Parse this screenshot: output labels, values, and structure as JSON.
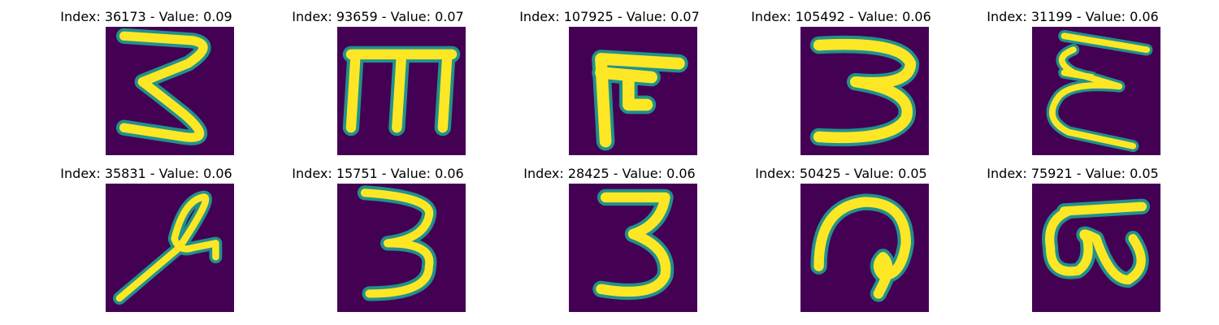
{
  "figure": {
    "colors": {
      "background": "#440154",
      "ink_mid": "#21918c",
      "ink_light": "#5ec962",
      "ink_peak": "#fde725"
    },
    "panels": [
      {
        "title": "Index: 36173 - Value: 0.09",
        "image": "digit-3-on-side"
      },
      {
        "title": "Index: 93659 - Value: 0.07",
        "image": "digit-3-rotated"
      },
      {
        "title": "Index: 107925 - Value: 0.07",
        "image": "digit-3-rotated"
      },
      {
        "title": "Index: 105492 - Value: 0.06",
        "image": "digit-3"
      },
      {
        "title": "Index: 31199 - Value: 0.06",
        "image": "digit-3-on-side"
      },
      {
        "title": "Index: 35831 - Value: 0.06",
        "image": "digit-scribble"
      },
      {
        "title": "Index: 15751 - Value: 0.06",
        "image": "digit-3"
      },
      {
        "title": "Index: 28425 - Value: 0.06",
        "image": "digit-3"
      },
      {
        "title": "Index: 50425 - Value: 0.05",
        "image": "digit-3-rotated"
      },
      {
        "title": "Index: 75921 - Value: 0.05",
        "image": "digit-3-rotated"
      }
    ]
  }
}
